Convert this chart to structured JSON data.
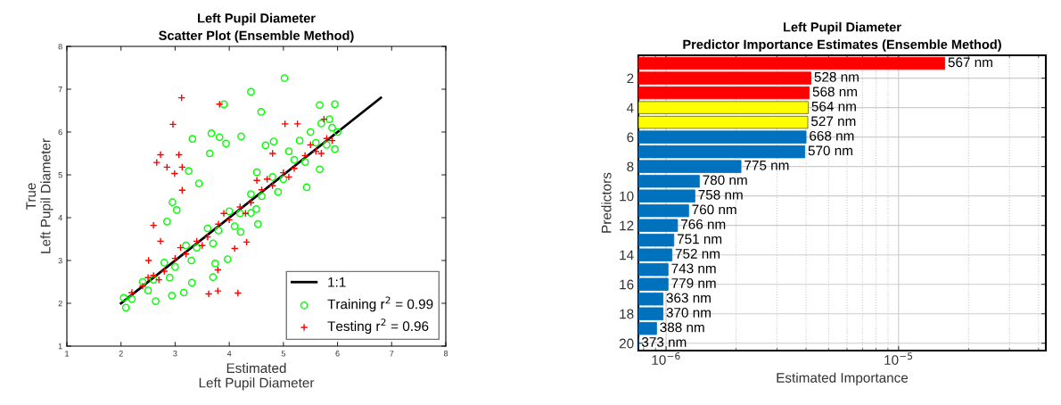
{
  "chart_data": [
    {
      "type": "scatter",
      "title": "Left Pupil Diameter",
      "subtitle": "Scatter Plot (Ensemble Method)",
      "xlabel": "Estimated\nLeft Pupil Diameter",
      "ylabel": "True\nLeft Pupil Diameter",
      "xlim": [
        1,
        8
      ],
      "ylim": [
        1,
        8
      ],
      "xticks": [
        1,
        2,
        3,
        4,
        5,
        6,
        7,
        8
      ],
      "yticks": [
        1,
        2,
        3,
        4,
        5,
        6,
        7,
        8
      ],
      "legend": "bottom right",
      "series": [
        {
          "name": "1:1",
          "type": "line",
          "color": "#000000",
          "marker": "none",
          "line_style": "solid",
          "x": [
            2,
            6.8
          ],
          "values": [
            2,
            6.8
          ]
        },
        {
          "name": "Training r$^{2}$ = 0.99",
          "color": "#00ff00",
          "marker": "circle",
          "x": [
            5.02,
            4.4,
            3.9,
            4.59,
            5.67,
            5.95,
            3.32,
            3.67,
            3.82,
            4.22,
            3.25,
            2.95,
            3.03,
            2.85,
            3.44,
            3.64,
            3.94,
            3.97,
            3.74,
            3.16,
            2.64,
            2.94,
            5.43,
            5.67,
            2.09,
            2.05,
            4.53,
            4.4,
            3.7,
            3.31,
            4.21,
            4.67,
            4.82,
            4.51,
            2.2,
            2.4,
            2.6,
            2.8,
            3.0,
            3.2,
            3.4,
            3.6,
            3.8,
            4.0,
            4.2,
            4.4,
            4.6,
            4.8,
            5.0,
            5.2,
            5.4,
            5.6,
            5.8,
            5.9,
            6.0,
            5.7,
            5.5,
            5.3,
            5.1,
            4.9,
            4.5,
            4.1,
            3.7,
            3.3,
            2.9,
            2.5,
            5.95,
            5.85
          ],
          "values": [
            7.26,
            6.94,
            6.65,
            6.47,
            6.63,
            6.65,
            5.84,
            5.97,
            5.88,
            5.9,
            5.09,
            4.36,
            4.18,
            3.91,
            4.8,
            5.5,
            5.73,
            3.03,
            2.93,
            2.25,
            2.05,
            2.18,
            4.71,
            5.13,
            1.9,
            2.13,
            3.85,
            4.11,
            2.61,
            2.48,
            3.67,
            5.69,
            5.78,
            5.06,
            2.1,
            2.5,
            2.55,
            2.95,
            2.85,
            3.35,
            3.3,
            3.75,
            3.7,
            4.15,
            4.1,
            4.55,
            4.5,
            4.95,
            4.9,
            5.35,
            5.3,
            5.75,
            5.7,
            6.1,
            6.0,
            6.2,
            6.0,
            5.8,
            5.55,
            4.6,
            4.2,
            3.8,
            3.4,
            3.0,
            2.6,
            2.3,
            5.6,
            6.3
          ]
        },
        {
          "name": "Testing r$^{2}$ = 0.96",
          "color": "#ff0000",
          "marker": "cross",
          "x": [
            3.12,
            3.82,
            2.96,
            2.73,
            2.66,
            3.07,
            2.85,
            3.13,
            2.99,
            3.13,
            2.6,
            3.62,
            3.79,
            4.16,
            5.03,
            5.26,
            5.75,
            4.32,
            4.1,
            3.79,
            2.51,
            2.73,
            4.8,
            4.51,
            2.2,
            2.4,
            2.6,
            2.8,
            3.0,
            3.2,
            3.4,
            3.6,
            3.8,
            4.0,
            4.2,
            4.4,
            4.6,
            4.8,
            5.0,
            5.2,
            5.4,
            5.6,
            5.8,
            5.9,
            2.5,
            2.7,
            3.1,
            3.5,
            3.9,
            4.3,
            4.7,
            5.1,
            5.5,
            5.7
          ],
          "values": [
            6.8,
            6.65,
            6.18,
            5.47,
            5.29,
            5.47,
            5.18,
            5.18,
            5.03,
            4.64,
            3.82,
            2.22,
            2.29,
            2.24,
            6.19,
            6.19,
            6.3,
            3.43,
            3.28,
            2.78,
            3.0,
            3.45,
            5.5,
            4.87,
            2.25,
            2.4,
            2.65,
            2.75,
            3.05,
            3.15,
            3.45,
            3.55,
            3.85,
            3.95,
            4.25,
            4.35,
            4.65,
            4.75,
            5.05,
            5.15,
            5.45,
            5.55,
            5.85,
            5.8,
            2.6,
            2.55,
            3.3,
            3.35,
            4.1,
            4.1,
            4.9,
            4.95,
            5.7,
            5.5
          ]
        }
      ]
    },
    {
      "type": "bar",
      "orientation": "horizontal",
      "log": "x",
      "grid": true,
      "title": "Left Pupil Diameter",
      "subtitle": "Predictor Importance Estimates (Ensemble Method)",
      "xlabel": "Estimated Importance",
      "ylabel": "Predictors",
      "xlim": [
        7.6e-07,
        4.3e-05
      ],
      "xticks": [
        {
          "value": 1e-06,
          "label": "10$^{−6}$"
        },
        {
          "value": 1e-05,
          "label": "10$^{−5}$"
        }
      ],
      "categories": [
        null,
        "2",
        null,
        "4",
        null,
        "6",
        null,
        "8",
        null,
        "10",
        null,
        "12",
        null,
        "14",
        null,
        "16",
        null,
        "18",
        null,
        "20"
      ],
      "values": [
        1.58e-05,
        4.2e-06,
        4.13e-06,
        4.09e-06,
        4.07e-06,
        4e-06,
        3.95e-06,
        2.1e-06,
        1.39e-06,
        1.33e-06,
        1.25e-06,
        1.12e-06,
        1.08e-06,
        1.06e-06,
        1.02e-06,
        1.02e-06,
        9.7e-07,
        9.7e-07,
        9.1e-07,
        7.6e-07
      ],
      "colors": [
        "#ff0000",
        "#ff0000",
        "#ff0000",
        "#ffff00",
        "#ffff00",
        "#0072bd",
        "#0072bd",
        "#0072bd",
        "#0072bd",
        "#0072bd",
        "#0072bd",
        "#0072bd",
        "#0072bd",
        "#0072bd",
        "#0072bd",
        "#0072bd",
        "#0072bd",
        "#0072bd",
        "#0072bd",
        "#0072bd"
      ],
      "annotations": [
        {
          "text": "567 nm",
          "x": 1.58e-05
        },
        {
          "text": "528 nm",
          "x": 4.2e-06,
          "y": "2"
        },
        {
          "text": "568 nm",
          "x": 4.13e-06
        },
        {
          "text": "564 nm",
          "x": 4.09e-06,
          "y": "4"
        },
        {
          "text": "527 nm",
          "x": 4.07e-06
        },
        {
          "text": "668 nm",
          "x": 4e-06,
          "y": "6"
        },
        {
          "text": "570 nm",
          "x": 3.95e-06
        },
        {
          "text": "775 nm",
          "x": 2.1e-06,
          "y": "8"
        },
        {
          "text": "780 nm",
          "x": 1.39e-06
        },
        {
          "text": "758 nm",
          "x": 1.33e-06,
          "y": "10"
        },
        {
          "text": "760 nm",
          "x": 1.25e-06
        },
        {
          "text": "766 nm",
          "x": 1.12e-06,
          "y": "12"
        },
        {
          "text": "751 nm",
          "x": 1.08e-06
        },
        {
          "text": "752 nm",
          "x": 1.06e-06,
          "y": "14"
        },
        {
          "text": "743 nm",
          "x": 1.02e-06
        },
        {
          "text": "779 nm",
          "x": 1.02e-06,
          "y": "16"
        },
        {
          "text": "363 nm",
          "x": 9.7e-07
        },
        {
          "text": "370 nm",
          "x": 9.7e-07,
          "y": "18"
        },
        {
          "text": "388 nm",
          "x": 9.1e-07
        },
        {
          "text": "373 nm",
          "x": 7.6e-07,
          "y": "20"
        }
      ]
    }
  ]
}
